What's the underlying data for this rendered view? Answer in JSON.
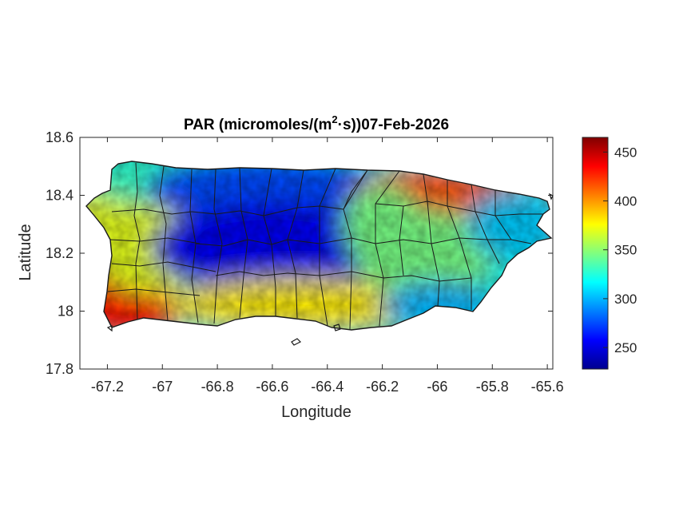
{
  "figure": {
    "title_main": "PAR (micromoles/(m",
    "title_sup": "2",
    "title_rest": "·s))07-Feb-2026"
  },
  "chart_data": {
    "type": "heatmap",
    "title": "PAR (micromoles/(m²·s))07-Feb-2026",
    "xlabel": "Longitude",
    "ylabel": "Latitude",
    "xlim": [
      -67.3,
      -65.58
    ],
    "ylim": [
      17.8,
      18.6
    ],
    "x_ticks": [
      -67.2,
      -67,
      -66.8,
      -66.6,
      -66.4,
      -66.2,
      -66,
      -65.8,
      -65.6
    ],
    "y_ticks": [
      17.8,
      18,
      18.2,
      18.4,
      18.6
    ],
    "colorbar": {
      "colormap": "jet",
      "range": [
        228,
        465
      ],
      "ticks": [
        250,
        300,
        350,
        400,
        450
      ]
    },
    "regions": [
      {
        "area": "southwest coast",
        "value": 430
      },
      {
        "area": "west interior",
        "value": 370
      },
      {
        "area": "northwest coast",
        "value": 330
      },
      {
        "area": "north-central",
        "value": 275
      },
      {
        "area": "central mountains",
        "value": 255
      },
      {
        "area": "south-central coast",
        "value": 380
      },
      {
        "area": "northeast near San Juan",
        "value": 415
      },
      {
        "area": "east interior",
        "value": 345
      },
      {
        "area": "far east coast",
        "value": 305
      },
      {
        "area": "southeast coast",
        "value": 300
      }
    ],
    "grid": false
  }
}
